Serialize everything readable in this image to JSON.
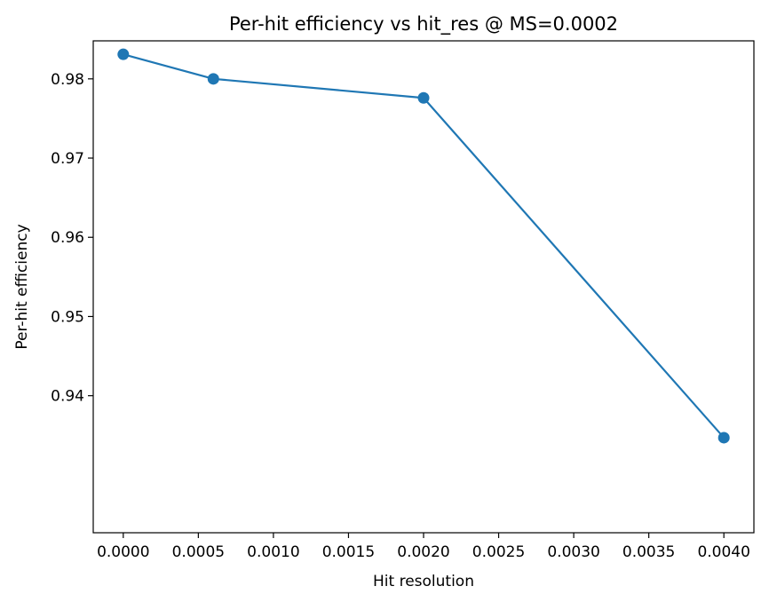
{
  "chart_data": {
    "type": "line",
    "title": "Per-hit efficiency vs hit_res @ MS=0.0002",
    "xlabel": "Hit resolution",
    "ylabel": "Per-hit efficiency",
    "xlim": [
      -0.0002,
      0.0042
    ],
    "ylim": [
      0.9227,
      0.9848
    ],
    "xticks": [
      0.0,
      0.0005,
      0.001,
      0.0015,
      0.002,
      0.0025,
      0.003,
      0.0035,
      0.004
    ],
    "xtick_labels": [
      "0.0000",
      "0.0005",
      "0.0010",
      "0.0015",
      "0.0020",
      "0.0025",
      "0.0030",
      "0.0035",
      "0.0040"
    ],
    "yticks": [
      0.94,
      0.95,
      0.96,
      0.97,
      0.98
    ],
    "ytick_labels": [
      "0.94",
      "0.95",
      "0.96",
      "0.97",
      "0.98"
    ],
    "grid": false,
    "series": [
      {
        "color": "#1f77b4",
        "marker": "circle",
        "x": [
          0.0,
          0.0006,
          0.002,
          0.004
        ],
        "y": [
          0.9831,
          0.98,
          0.9776,
          0.9347
        ]
      }
    ]
  }
}
